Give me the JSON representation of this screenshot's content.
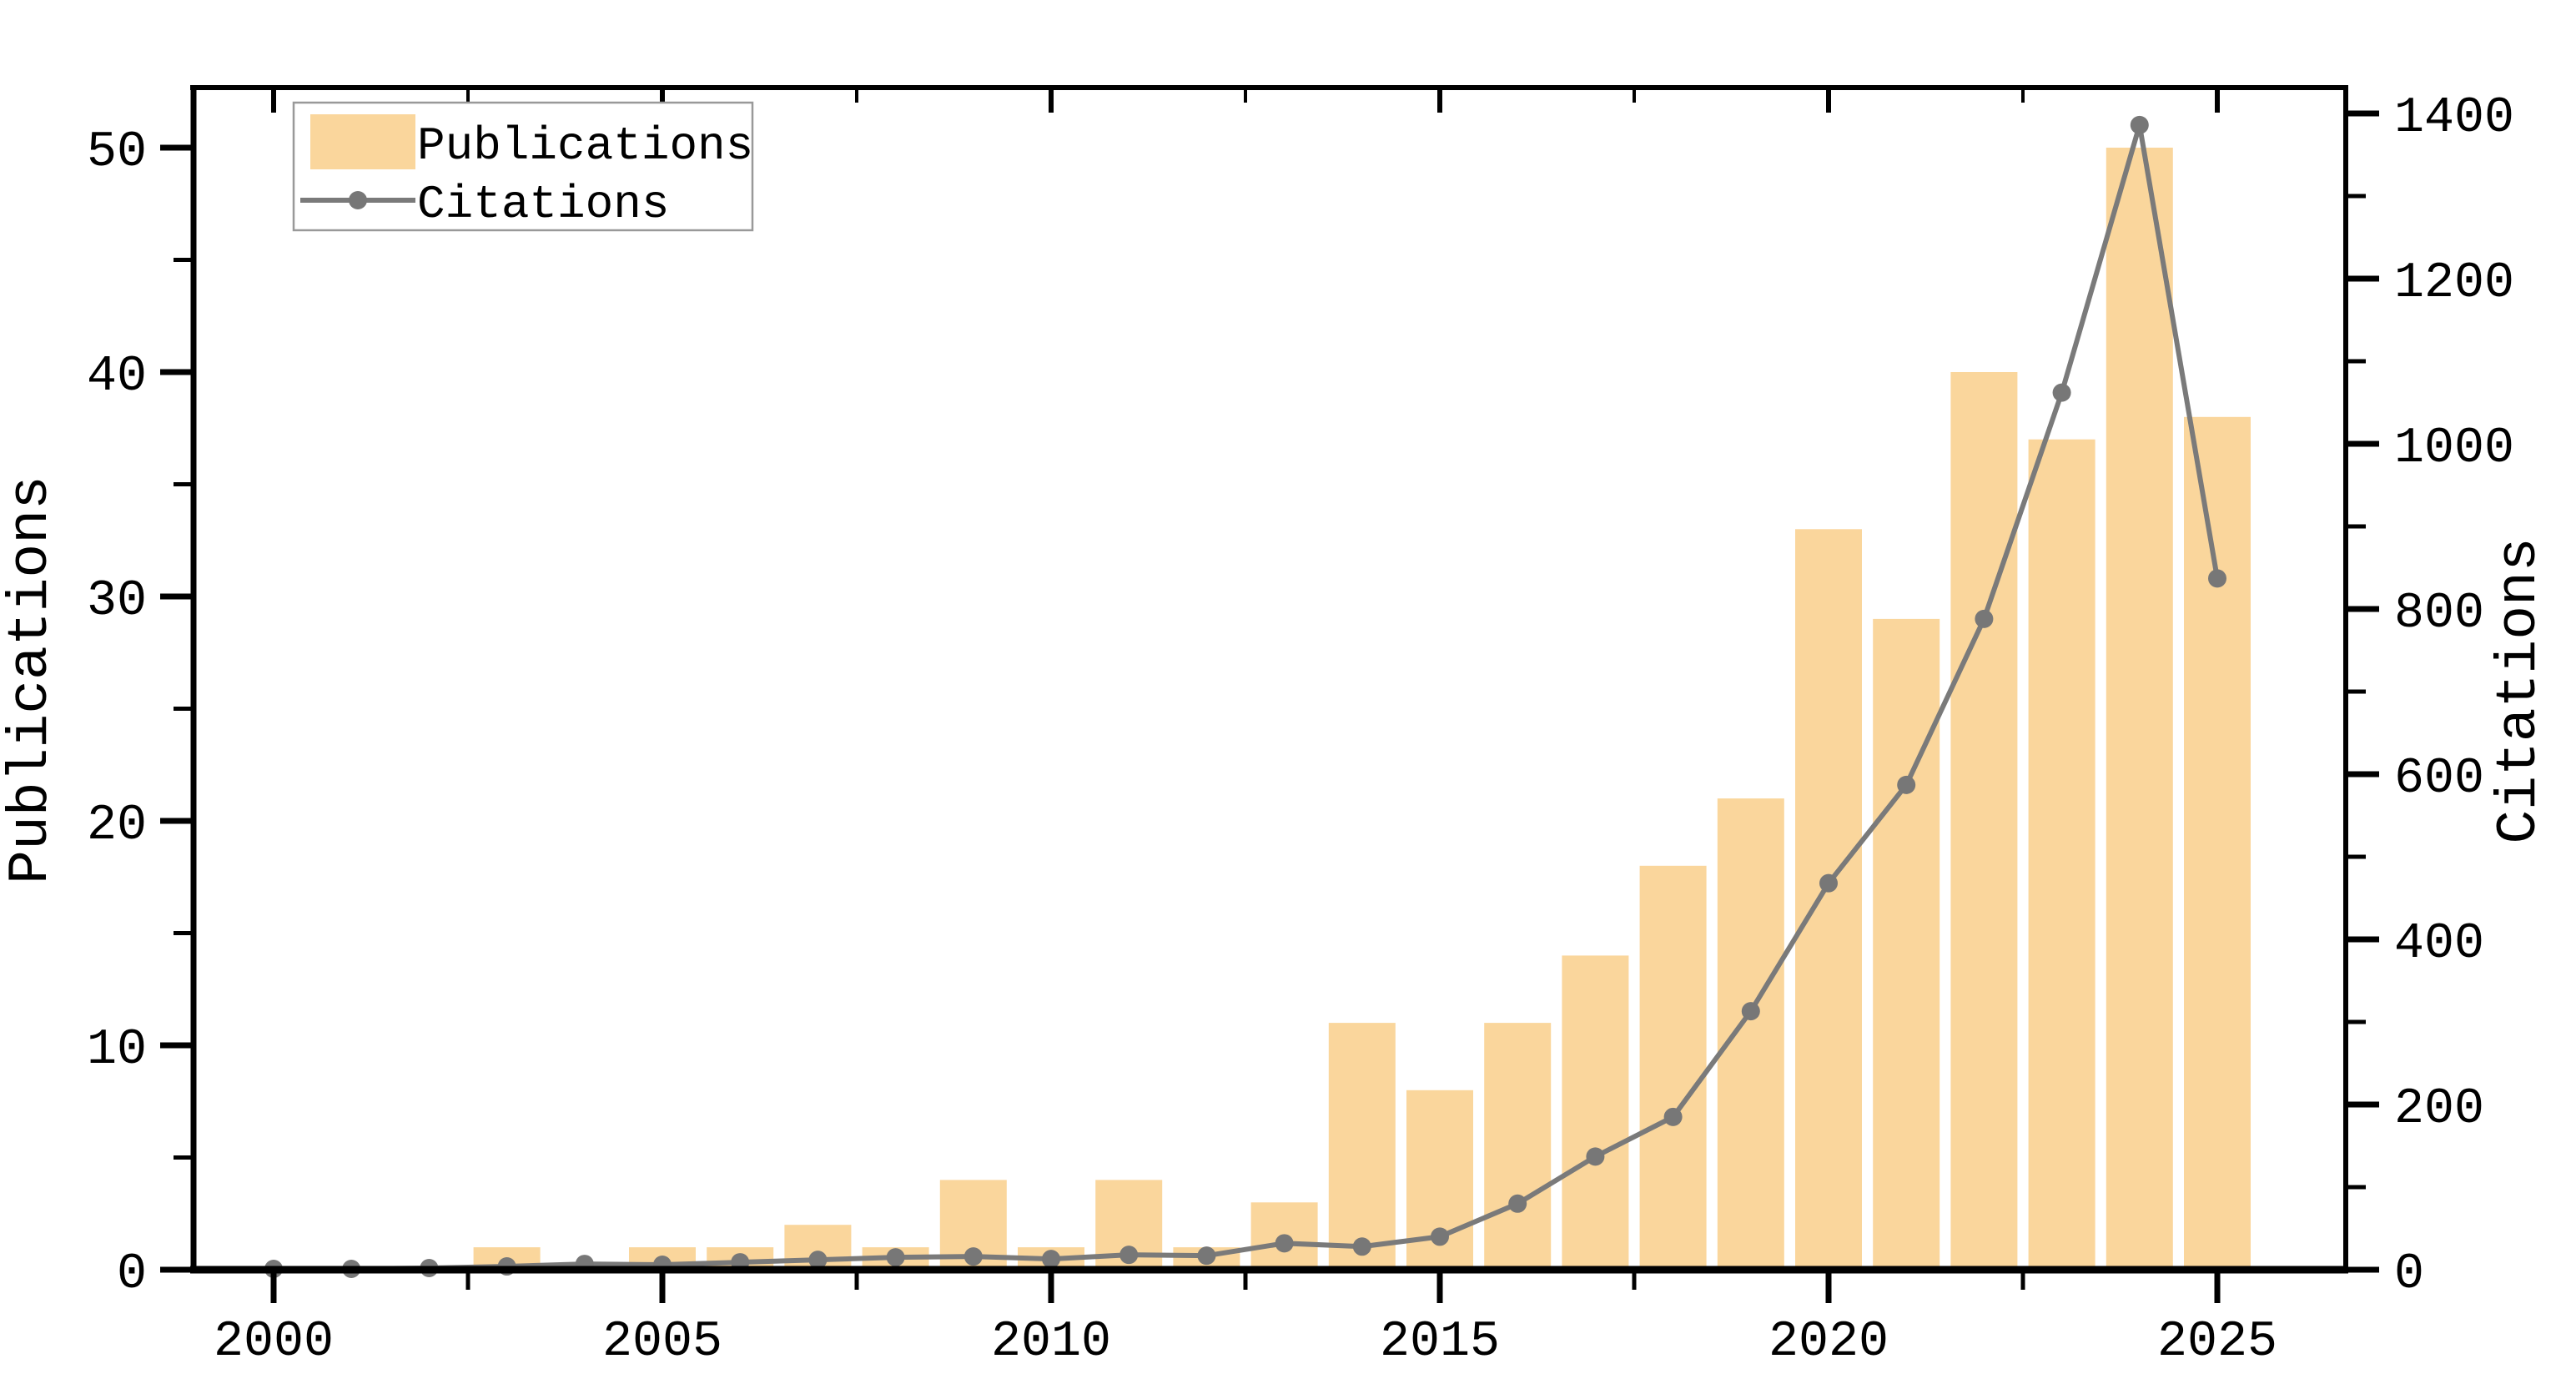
{
  "chart_data": {
    "type": "bar+line",
    "x": [
      2000,
      2001,
      2002,
      2003,
      2004,
      2005,
      2006,
      2007,
      2008,
      2009,
      2010,
      2011,
      2012,
      2013,
      2014,
      2015,
      2016,
      2017,
      2018,
      2019,
      2020,
      2021,
      2022,
      2023,
      2024,
      2025
    ],
    "series": [
      {
        "name": "Publications",
        "type": "bar",
        "axis": "left",
        "color": "#FAD69C",
        "values": [
          0,
          0,
          0,
          1,
          0,
          1,
          1,
          2,
          1,
          4,
          1,
          4,
          1,
          3,
          11,
          8,
          11,
          14,
          18,
          21,
          33,
          29,
          40,
          37,
          50,
          38
        ]
      },
      {
        "name": "Citations",
        "type": "line",
        "axis": "right",
        "color": "#7A7A7A",
        "values": [
          1,
          1,
          2,
          4,
          7,
          6,
          9,
          12,
          15,
          16,
          13,
          18,
          17,
          32,
          28,
          40,
          80,
          137,
          185,
          313,
          468,
          587,
          788,
          1062,
          1386,
          837
        ]
      }
    ],
    "left_axis": {
      "label": "Publications",
      "tick_labels": [
        0,
        10,
        20,
        30,
        40,
        50
      ],
      "minor_ticks": [
        5,
        15,
        25,
        35,
        45
      ],
      "range": [
        0,
        52.7
      ]
    },
    "right_axis": {
      "label": "Citations",
      "tick_labels": [
        0,
        200,
        400,
        600,
        800,
        1000,
        1200,
        1400
      ],
      "minor_ticks": [
        100,
        300,
        500,
        700,
        900,
        1100,
        1300
      ],
      "range": [
        0,
        1431
      ]
    },
    "x_axis": {
      "tick_labels": [
        2000,
        2005,
        2010,
        2015,
        2020,
        2025
      ],
      "minor_ticks": [
        2002.5,
        2007.5,
        2012.5,
        2017.5,
        2022.5
      ],
      "range": [
        1998.97,
        2026.65
      ]
    },
    "legend": {
      "position": "upper-left",
      "entries": [
        "Publications",
        "Citations"
      ]
    },
    "colors": {
      "bar": "#FAD69C",
      "line": "#7A7A7A",
      "marker": "#777777",
      "axis": "#000000",
      "legend_border": "#999999",
      "background": "#FFFFFF"
    },
    "grid": "off"
  }
}
